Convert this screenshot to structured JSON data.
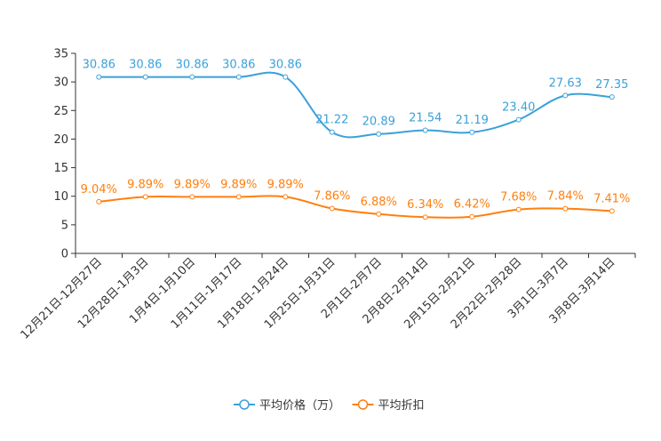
{
  "chart_data": {
    "type": "line",
    "title": "",
    "categories": [
      "12月21日-12月27日",
      "12月28日-1月3日",
      "1月4日-1月10日",
      "1月11日-1月17日",
      "1月18日-1月24日",
      "1月25日-1月31日",
      "2月1日-2月7日",
      "2月8日-2月14日",
      "2月15日-2月21日",
      "2月22日-2月28日",
      "3月1日-3月7日",
      "3月8日-3月14日"
    ],
    "ylim": [
      0,
      35
    ],
    "yticks": [
      0,
      5,
      10,
      15,
      20,
      25,
      30,
      35
    ],
    "legend_position": "bottom",
    "series": [
      {
        "name": "平均价格（万）",
        "color": "#3ba1d8",
        "values": [
          30.86,
          30.86,
          30.86,
          30.86,
          30.86,
          21.22,
          20.89,
          21.54,
          21.19,
          23.4,
          27.63,
          27.35
        ],
        "labels": [
          "30.86",
          "30.86",
          "30.86",
          "30.86",
          "30.86",
          "21.22",
          "20.89",
          "21.54",
          "21.19",
          "23.40",
          "27.63",
          "27.35"
        ]
      },
      {
        "name": "平均折扣",
        "color": "#ff7f0e",
        "values": [
          9.04,
          9.89,
          9.89,
          9.89,
          9.89,
          7.86,
          6.88,
          6.34,
          6.42,
          7.68,
          7.84,
          7.41
        ],
        "labels": [
          "9.04%",
          "9.89%",
          "9.89%",
          "9.89%",
          "9.89%",
          "7.86%",
          "6.88%",
          "6.34%",
          "6.42%",
          "7.68%",
          "7.84%",
          "7.41%"
        ]
      }
    ]
  }
}
